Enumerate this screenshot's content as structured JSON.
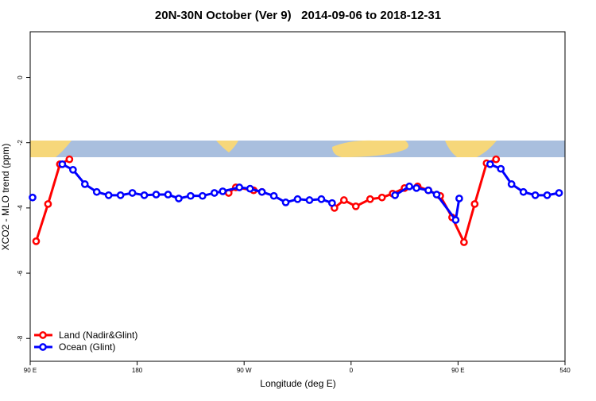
{
  "chart_data": {
    "type": "line",
    "title": "20N-30N October (Ver 9)   2014-09-06 to 2018-12-31",
    "x_label": "Longitude (deg E)",
    "y_label": "XCO2 - MLO trend (ppm)",
    "xlim": [
      90,
      540
    ],
    "xticks": [
      {
        "value": 90,
        "label": "90 E"
      },
      180,
      {
        "value": 270,
        "label": "90 W"
      },
      {
        "value": 360,
        "label": "0"
      },
      {
        "value": 450,
        "label": "90 E"
      },
      540
    ],
    "ylim": [
      -8.7,
      1.4
    ],
    "yticks": [
      -8,
      -6,
      -4,
      -2,
      0
    ],
    "legend": "bottom-left",
    "series": [
      {
        "name": "Land (Nadir&Glint)",
        "color": "#ff0000",
        "x": [
          95,
          105,
          115,
          123,
          null,
          257,
          263,
          278,
          285,
          null,
          346,
          354,
          364,
          376,
          386,
          395,
          405,
          416,
          425,
          435,
          445,
          455,
          464,
          474,
          482
        ],
        "values": [
          -5.02,
          -3.88,
          -2.66,
          -2.51,
          null,
          -3.54,
          -3.37,
          -3.46,
          -3.51,
          null,
          -4.0,
          -3.76,
          -3.95,
          -3.73,
          -3.68,
          -3.56,
          -3.39,
          -3.34,
          -3.46,
          -3.63,
          -4.29,
          -5.05,
          -3.88,
          -2.63,
          -2.51
        ]
      },
      {
        "name": "Ocean (Glint)",
        "color": "#0000ff",
        "x": [
          92,
          null,
          117,
          126,
          136,
          146,
          156,
          166,
          176,
          186,
          196,
          206,
          215,
          225,
          235,
          245,
          252,
          266,
          275,
          285,
          295,
          305,
          315,
          325,
          335,
          344,
          null,
          397,
          409,
          415,
          425,
          432,
          448,
          451,
          null,
          477,
          486,
          495,
          505,
          515,
          525,
          535
        ],
        "values": [
          -3.68,
          null,
          -2.66,
          -2.83,
          -3.27,
          -3.51,
          -3.61,
          -3.61,
          -3.54,
          -3.61,
          -3.59,
          -3.59,
          -3.71,
          -3.63,
          -3.63,
          -3.54,
          -3.49,
          -3.37,
          -3.41,
          -3.51,
          -3.63,
          -3.83,
          -3.73,
          -3.76,
          -3.73,
          -3.85,
          null,
          -3.61,
          -3.34,
          -3.39,
          -3.46,
          -3.59,
          -4.37,
          -3.71,
          null,
          -2.66,
          -2.8,
          -3.27,
          -3.51,
          -3.61,
          -3.61,
          -3.54
        ]
      }
    ]
  }
}
